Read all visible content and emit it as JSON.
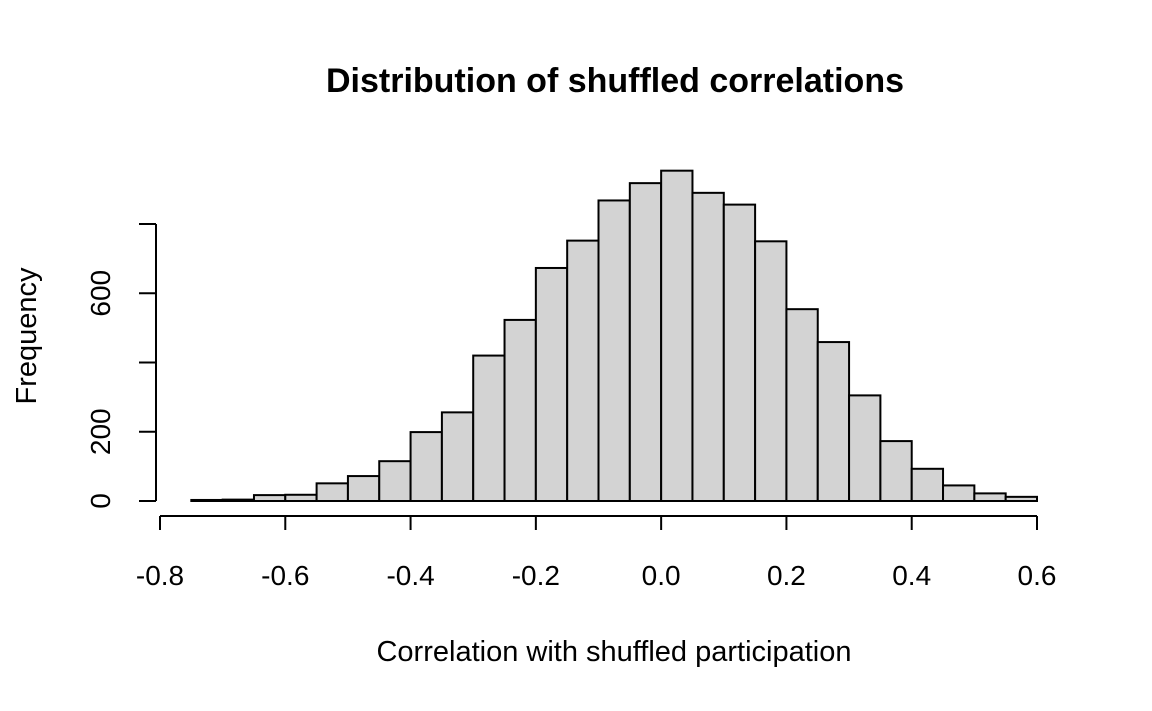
{
  "chart_data": {
    "type": "bar",
    "title": "Distribution of shuffled correlations",
    "xlabel": "Correlation with shuffled participation",
    "ylabel": "Frequency",
    "bin_width": 0.05,
    "bin_starts": [
      -0.75,
      -0.7,
      -0.65,
      -0.6,
      -0.55,
      -0.5,
      -0.45,
      -0.4,
      -0.35,
      -0.3,
      -0.25,
      -0.2,
      -0.15,
      -0.1,
      -0.05,
      0.0,
      0.05,
      0.1,
      0.15,
      0.2,
      0.25,
      0.3,
      0.35,
      0.4,
      0.45,
      0.5,
      0.55
    ],
    "values": [
      3,
      4,
      17,
      18,
      51,
      72,
      115,
      199,
      256,
      420,
      523,
      673,
      752,
      868,
      918,
      954,
      890,
      856,
      750,
      554,
      459,
      305,
      173,
      93,
      45,
      22,
      12
    ],
    "xlim": [
      -0.8,
      0.6
    ],
    "ylim": [
      0,
      800
    ],
    "x_ticks": [
      -0.8,
      -0.6,
      -0.4,
      -0.2,
      0.0,
      0.2,
      0.4,
      0.6
    ],
    "x_tick_labels": [
      "-0.8",
      "-0.6",
      "-0.4",
      "-0.2",
      "0.0",
      "0.2",
      "0.4",
      "0.6"
    ],
    "y_ticks": [
      0,
      200,
      400,
      600,
      800
    ],
    "y_tick_labels": [
      "0",
      "200",
      "",
      "600",
      ""
    ],
    "bar_color": "#d3d3d3",
    "edge_color": "#000000",
    "grid": false
  }
}
